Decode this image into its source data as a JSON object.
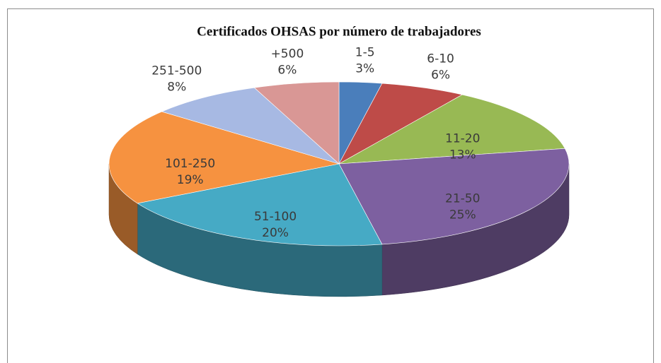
{
  "chart_data": {
    "type": "pie3d",
    "title": "Certificados OHSAS por número de trabajadores",
    "categories": [
      "1-5",
      "6-10",
      "11-20",
      "21-50",
      "51-100",
      "101-250",
      "251-500",
      "+500"
    ],
    "values": [
      3,
      6,
      13,
      25,
      20,
      19,
      8,
      6
    ],
    "value_labels": [
      "3%",
      "6%",
      "13%",
      "25%",
      "20%",
      "19%",
      "8%",
      "6%"
    ],
    "colors": [
      "#4a7ebb",
      "#be4b48",
      "#98b954",
      "#7d60a0",
      "#46aac5",
      "#f69240",
      "#a7b9e3",
      "#d99795"
    ]
  }
}
